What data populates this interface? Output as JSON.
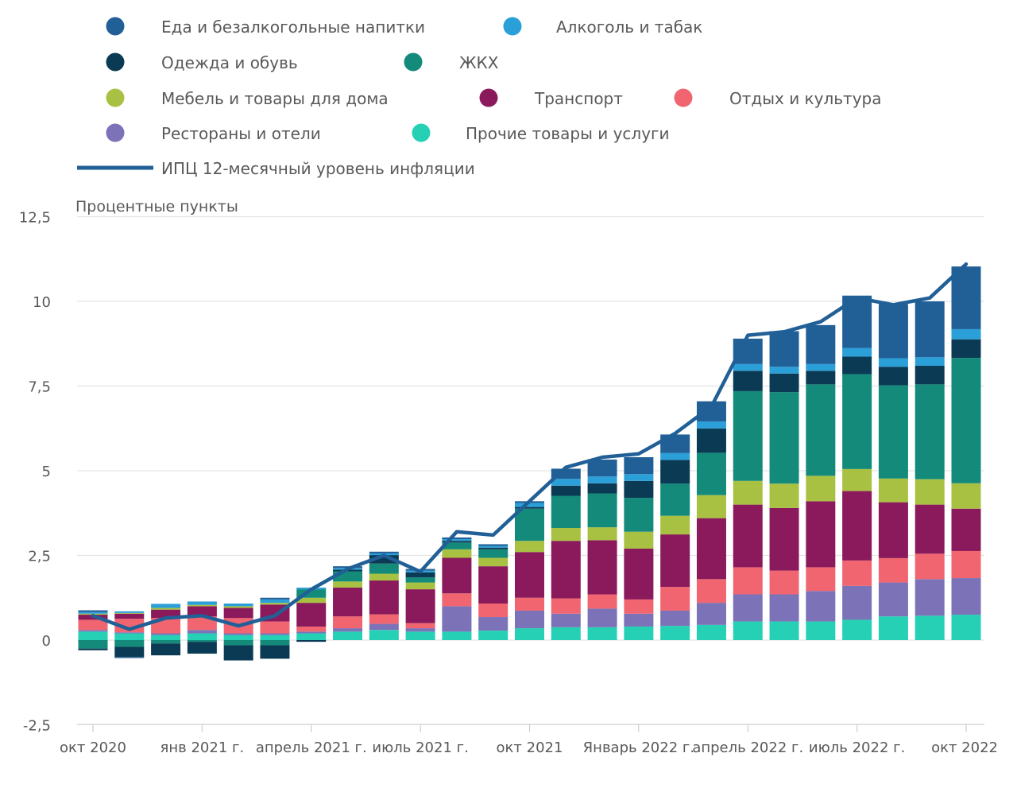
{
  "chart_data": {
    "type": "bar",
    "stacked": true,
    "ylabel": "Процентные пункты",
    "ylim": [
      -2.5,
      12.5
    ],
    "yticks": [
      -2.5,
      0,
      2.5,
      5,
      7.5,
      10,
      12.5
    ],
    "ytick_labels": [
      "-2,5",
      "0",
      "2,5",
      "5",
      "7,5",
      "10",
      "12,5"
    ],
    "grid": true,
    "legend_position": "top",
    "x_tick_labels": [
      {
        "index": 0,
        "label": "окт 2020"
      },
      {
        "index": 3,
        "label": "янв 2021 г."
      },
      {
        "index": 6,
        "label": "апрель 2021 г."
      },
      {
        "index": 9,
        "label": "июль 2021 г."
      },
      {
        "index": 12,
        "label": "окт 2021"
      },
      {
        "index": 15,
        "label": "Январь 2022 г."
      },
      {
        "index": 18,
        "label": "апрель 2022 г."
      },
      {
        "index": 21,
        "label": "июль 2022 г."
      },
      {
        "index": 24,
        "label": "окт 2022"
      }
    ],
    "categories": [
      "2020-10",
      "2020-11",
      "2020-12",
      "2021-01",
      "2021-02",
      "2021-03",
      "2021-04",
      "2021-05",
      "2021-06",
      "2021-07",
      "2021-08",
      "2021-09",
      "2021-10",
      "2021-11",
      "2021-12",
      "2022-01",
      "2022-02",
      "2022-03",
      "2022-04",
      "2022-05",
      "2022-06",
      "2022-07",
      "2022-08",
      "2022-09",
      "2022-10"
    ],
    "series": [
      {
        "name": "Прочие товары и услуги",
        "color": "#26d0b5",
        "values": [
          0.25,
          0.2,
          0.15,
          0.2,
          0.15,
          0.15,
          0.2,
          0.25,
          0.3,
          0.25,
          0.25,
          0.28,
          0.35,
          0.38,
          0.38,
          0.4,
          0.42,
          0.45,
          0.55,
          0.55,
          0.55,
          0.6,
          0.7,
          0.72,
          0.75
        ]
      },
      {
        "name": "Рестораны и отели",
        "color": "#7b72b8",
        "values": [
          0.05,
          0.03,
          0.05,
          0.1,
          0.05,
          0.05,
          0.05,
          0.1,
          0.18,
          0.1,
          0.75,
          0.4,
          0.52,
          0.4,
          0.55,
          0.38,
          0.45,
          0.65,
          0.8,
          0.8,
          0.9,
          1.0,
          1.0,
          1.08,
          1.08
        ]
      },
      {
        "name": "Отдых и культура",
        "color": "#f06570",
        "values": [
          0.3,
          0.4,
          0.45,
          0.4,
          0.45,
          0.35,
          0.15,
          0.35,
          0.28,
          0.15,
          0.38,
          0.4,
          0.38,
          0.45,
          0.42,
          0.42,
          0.7,
          0.7,
          0.8,
          0.7,
          0.7,
          0.75,
          0.72,
          0.75,
          0.8
        ]
      },
      {
        "name": "Транспорт",
        "color": "#8a1a5b",
        "values": [
          0.15,
          0.15,
          0.25,
          0.3,
          0.3,
          0.5,
          0.7,
          0.85,
          1.0,
          1.0,
          1.05,
          1.1,
          1.35,
          1.7,
          1.6,
          1.5,
          1.55,
          1.8,
          1.85,
          1.85,
          1.95,
          2.05,
          1.65,
          1.45,
          1.25
        ]
      },
      {
        "name": "Мебель и товары для дома",
        "color": "#a9c142",
        "values": [
          0.03,
          0.02,
          0.05,
          0.04,
          0.05,
          0.05,
          0.15,
          0.18,
          0.2,
          0.2,
          0.25,
          0.25,
          0.33,
          0.38,
          0.38,
          0.5,
          0.55,
          0.68,
          0.7,
          0.72,
          0.75,
          0.65,
          0.7,
          0.75,
          0.75
        ]
      },
      {
        "name": "ЖКХ",
        "color": "#138a7a",
        "values": [
          -0.25,
          -0.2,
          -0.1,
          -0.05,
          -0.15,
          -0.15,
          0.25,
          0.3,
          0.3,
          0.15,
          0.2,
          0.25,
          0.95,
          0.95,
          1.0,
          1.0,
          0.95,
          1.25,
          2.65,
          2.7,
          2.7,
          2.8,
          2.75,
          2.8,
          3.7
        ]
      },
      {
        "name": "Одежда и обувь",
        "color": "#0b3a54",
        "values": [
          -0.05,
          -0.3,
          -0.35,
          -0.35,
          -0.45,
          -0.4,
          -0.05,
          0.05,
          0.25,
          0.15,
          0.05,
          0.05,
          0.05,
          0.3,
          0.3,
          0.5,
          0.7,
          0.72,
          0.6,
          0.55,
          0.4,
          0.52,
          0.55,
          0.55,
          0.55
        ]
      },
      {
        "name": "Алкоголь и табак",
        "color": "#2a9fd8",
        "values": [
          0.05,
          0.05,
          0.12,
          0.1,
          0.08,
          0.1,
          0.05,
          0.05,
          0.05,
          0.05,
          0.05,
          0.05,
          0.12,
          0.2,
          0.2,
          0.2,
          0.2,
          0.2,
          0.2,
          0.2,
          0.2,
          0.25,
          0.25,
          0.25,
          0.3
        ]
      },
      {
        "name": "Еда и безалкогольные напитки",
        "color": "#215f97",
        "values": [
          0.05,
          -0.03,
          0.0,
          0.0,
          0.0,
          0.05,
          0.0,
          0.05,
          0.05,
          0.05,
          0.05,
          0.05,
          0.05,
          0.3,
          0.5,
          0.5,
          0.55,
          0.6,
          0.75,
          1.05,
          1.15,
          1.55,
          1.6,
          1.65,
          1.85
        ]
      }
    ],
    "line": {
      "name": "ИПЦ 12-месячный уровень инфляции",
      "color": "#215f97",
      "values": [
        0.72,
        0.32,
        0.65,
        0.72,
        0.42,
        0.72,
        1.5,
        2.1,
        2.5,
        2.02,
        3.2,
        3.1,
        4.1,
        5.1,
        5.4,
        5.5,
        6.1,
        6.9,
        9.0,
        9.1,
        9.4,
        10.1,
        9.9,
        10.1,
        11.1
      ]
    }
  },
  "legend": {
    "rows": [
      [
        {
          "label": "Еда и безалкогольные напитки",
          "color": "#215f97"
        },
        {
          "label": "Алкоголь и табак",
          "color": "#2a9fd8"
        }
      ],
      [
        {
          "label": "Одежда и обувь",
          "color": "#0b3a54"
        },
        {
          "label": "ЖКХ",
          "color": "#138a7a"
        }
      ],
      [
        {
          "label": "Мебель и товары для дома",
          "color": "#a9c142"
        },
        {
          "label": "Транспорт",
          "color": "#8a1a5b"
        },
        {
          "label": "Отдых и культура",
          "color": "#f06570"
        }
      ],
      [
        {
          "label": "Рестораны и отели",
          "color": "#7b72b8"
        },
        {
          "label": "Прочие товары и услуги",
          "color": "#26d0b5"
        }
      ]
    ],
    "line_label": "ИПЦ 12-месячный уровень инфляции",
    "line_color": "#215f97"
  }
}
